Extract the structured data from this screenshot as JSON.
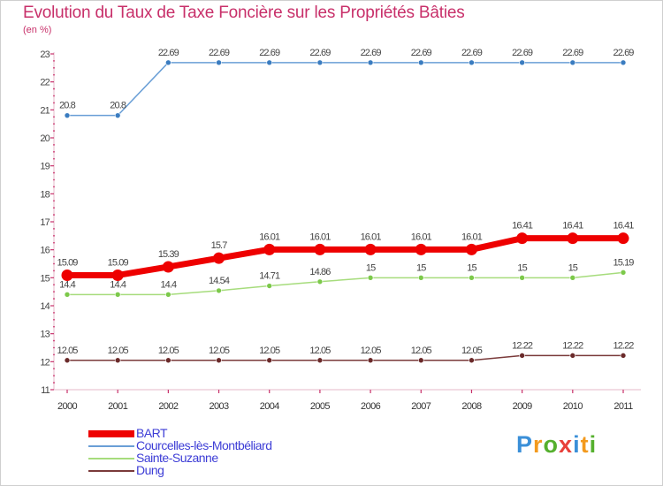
{
  "title": "Evolution du Taux de Taxe Foncière sur les Propriétés Bâties",
  "subtitle": "(en %)",
  "logo": {
    "text": "Proxiti",
    "letters": [
      {
        "char": "P",
        "color": "#3a8fd8"
      },
      {
        "char": "r",
        "color": "#f39a1e"
      },
      {
        "char": "o",
        "color": "#55b02e"
      },
      {
        "char": "x",
        "color": "#e8403a"
      },
      {
        "char": "i",
        "color": "#3a8fd8"
      },
      {
        "char": "t",
        "color": "#f39a1e"
      },
      {
        "char": "i",
        "color": "#55b02e"
      }
    ]
  },
  "chart_data": {
    "type": "line",
    "title": "Evolution du Taux de Taxe Foncière sur les Propriétés Bâties",
    "ylabel": "(en %)",
    "xlabel": "",
    "x": [
      "2000",
      "2001",
      "2002",
      "2003",
      "2004",
      "2005",
      "2006",
      "2007",
      "2008",
      "2009",
      "2010",
      "2011"
    ],
    "ylim": [
      11,
      23
    ],
    "yticks": [
      "11",
      "12",
      "13",
      "14",
      "15",
      "16",
      "17",
      "18",
      "19",
      "20",
      "21",
      "22",
      "23"
    ],
    "grid": false,
    "legend_position": "bottom-left",
    "series": [
      {
        "name": "BART",
        "color": "#ee0000",
        "line_width": 7,
        "marker_radius": 6.5,
        "values": [
          15.09,
          15.09,
          15.39,
          15.7,
          16.01,
          16.01,
          16.01,
          16.01,
          16.01,
          16.41,
          16.41,
          16.41
        ],
        "labels": [
          "15.09",
          "15.09",
          "15.39",
          "15.7",
          "16.01",
          "16.01",
          "16.01",
          "16.01",
          "16.01",
          "16.41",
          "16.41",
          "16.41"
        ]
      },
      {
        "name": "Courcelles-lès-Montbéliard",
        "color": "#6a9fd6",
        "marker_color": "#3a7cc0",
        "line_width": 1.5,
        "marker_radius": 3,
        "values": [
          20.8,
          20.8,
          22.69,
          22.69,
          22.69,
          22.69,
          22.69,
          22.69,
          22.69,
          22.69,
          22.69,
          22.69
        ],
        "labels": [
          "20.8",
          "20.8",
          "22.69",
          "22.69",
          "22.69",
          "22.69",
          "22.69",
          "22.69",
          "22.69",
          "22.69",
          "22.69",
          "22.69"
        ]
      },
      {
        "name": "Sainte-Suzanne",
        "color": "#a6dc7c",
        "marker_color": "#7cc94a",
        "line_width": 1.5,
        "marker_radius": 3,
        "values": [
          14.4,
          14.4,
          14.4,
          14.54,
          14.71,
          14.86,
          15,
          15,
          15,
          15,
          15,
          15.19
        ],
        "labels": [
          "14.4",
          "14.4",
          "14.4",
          "14.54",
          "14.71",
          "14.86",
          "15",
          "15",
          "15",
          "15",
          "15",
          "15.19"
        ]
      },
      {
        "name": "Dung",
        "color": "#7a3a3a",
        "marker_color": "#6a2a2a",
        "line_width": 1.5,
        "marker_radius": 3,
        "values": [
          12.05,
          12.05,
          12.05,
          12.05,
          12.05,
          12.05,
          12.05,
          12.05,
          12.05,
          12.22,
          12.22,
          12.22
        ],
        "labels": [
          "12.05",
          "12.05",
          "12.05",
          "12.05",
          "12.05",
          "12.05",
          "12.05",
          "12.05",
          "12.05",
          "12.22",
          "12.22",
          "12.22"
        ]
      }
    ]
  }
}
